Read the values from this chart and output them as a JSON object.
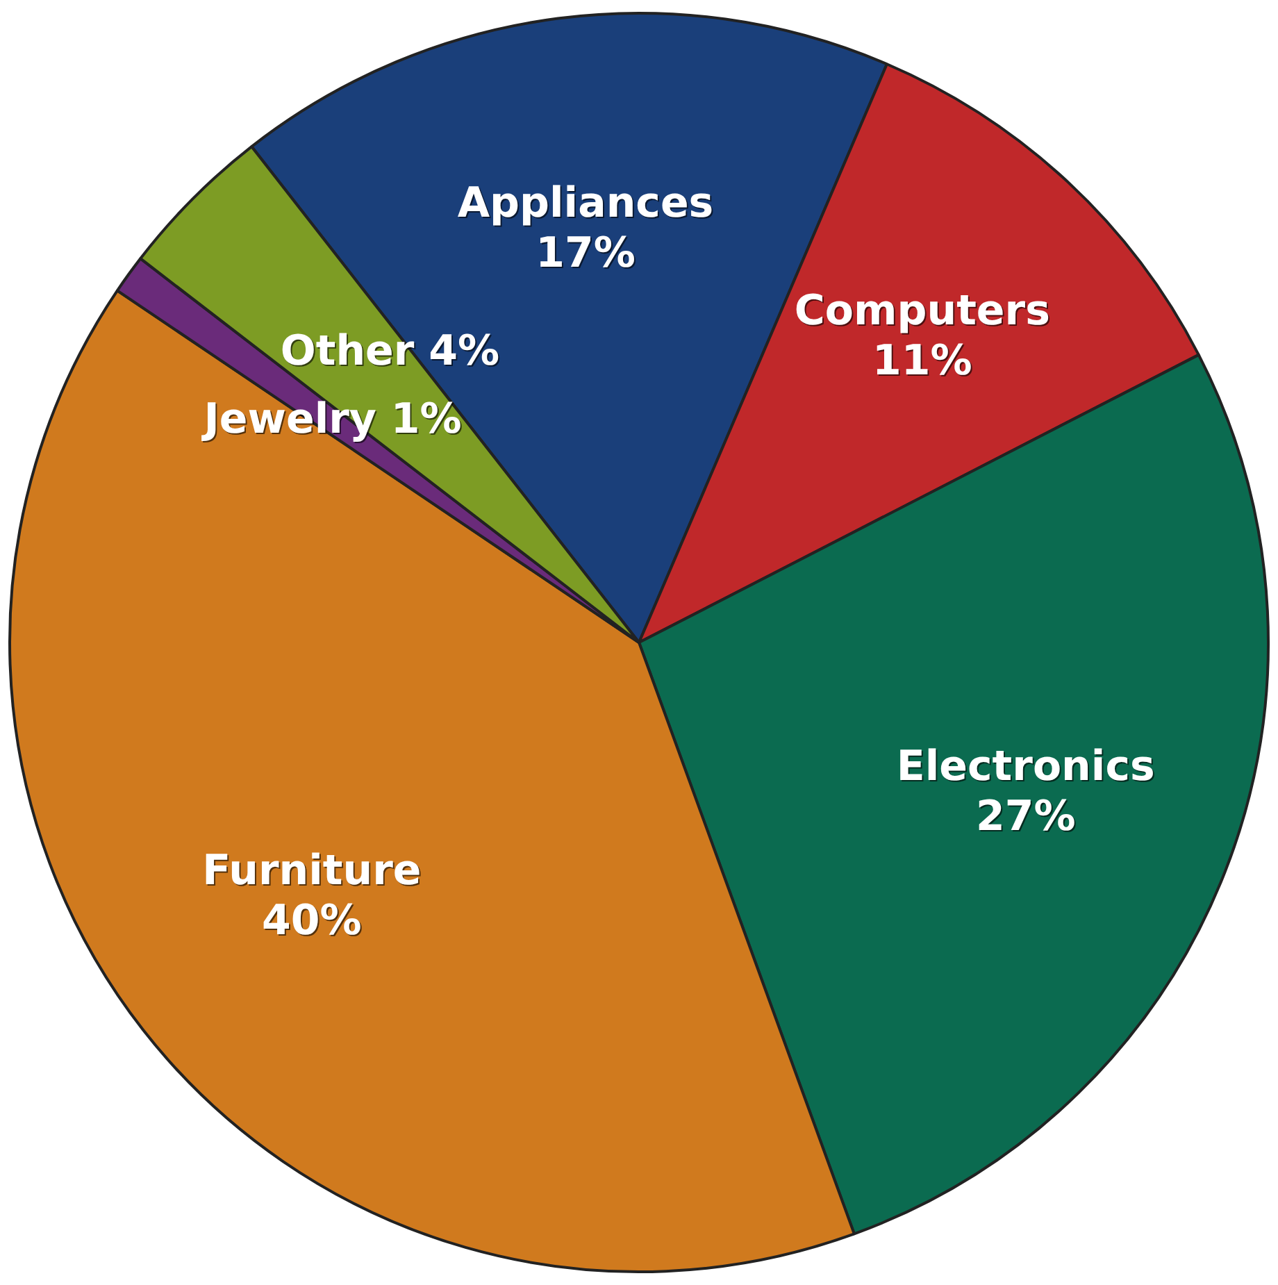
{
  "chart_data": {
    "type": "pie",
    "categories": [
      "Appliances",
      "Computers",
      "Electronics",
      "Furniture",
      "Jewelry",
      "Other"
    ],
    "values": [
      17,
      11,
      27,
      40,
      1,
      4
    ],
    "value_labels": [
      "17%",
      "11%",
      "27%",
      "40%",
      "1%",
      "4%"
    ],
    "colors": [
      "#1a3f7a",
      "#c0282a",
      "#0b6b50",
      "#d07a1e",
      "#6a2b7a",
      "#7d9c24"
    ],
    "legend": false
  }
}
